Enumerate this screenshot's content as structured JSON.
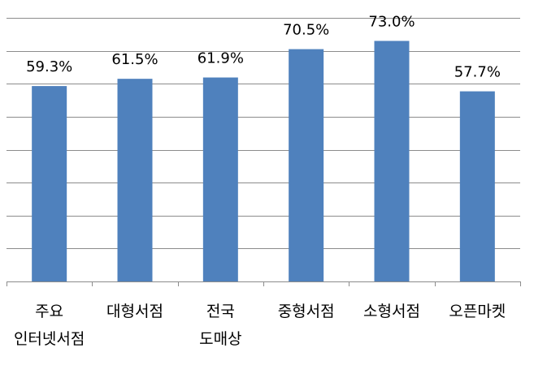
{
  "chart_data": {
    "type": "bar",
    "categories": [
      [
        "주요",
        "인터넷서점"
      ],
      [
        "대형서점"
      ],
      [
        "전국",
        "도매상"
      ],
      [
        "중형서점"
      ],
      [
        "소형서점"
      ],
      [
        "오픈마켓"
      ]
    ],
    "values": [
      59.3,
      61.5,
      61.9,
      70.5,
      73.0,
      57.7
    ],
    "data_labels": [
      "59.3%",
      "61.5%",
      "61.9%",
      "70.5%",
      "73.0%",
      "57.7%"
    ],
    "ylim": [
      0,
      80
    ],
    "gridlines": 8,
    "grid": true,
    "bar_color": "#4f81bd",
    "title": "",
    "xlabel": "",
    "ylabel": ""
  }
}
